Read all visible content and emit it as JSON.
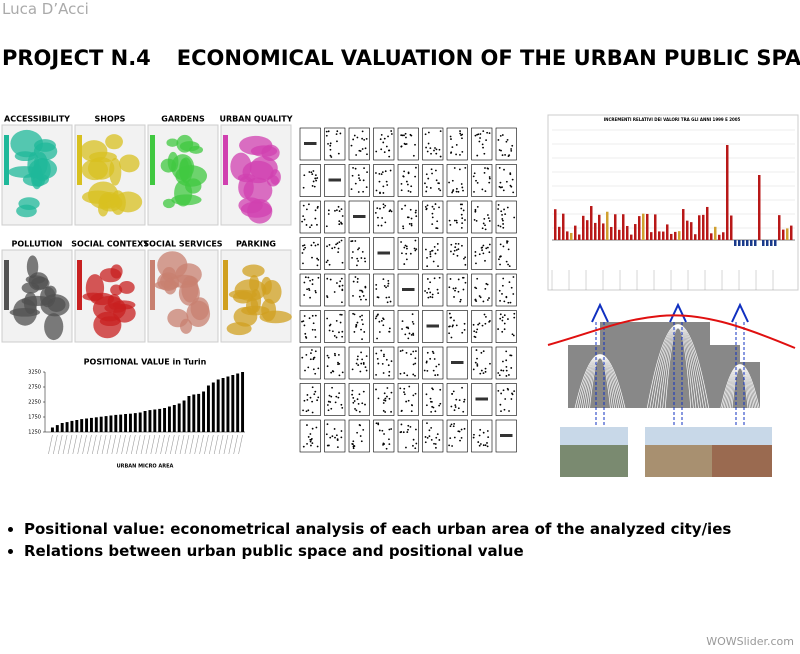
{
  "header": {
    "author": "Luca D’Acci",
    "project": "PROJECT N.4",
    "title": "ECONOMICAL VALUATION OF THE URBAN PUBLIC SPACE"
  },
  "maps": {
    "labels": [
      "ACCESSIBILITY",
      "SHOPS",
      "GARDENS",
      "URBAN QUALITY",
      "POLLUTION",
      "SOCIAL CONTEXT",
      "SOCIAL SERVICES",
      "PARKING"
    ],
    "colors": [
      "#1fb89a",
      "#d8c020",
      "#40c840",
      "#d040b0",
      "#505050",
      "#c82020",
      "#c88070",
      "#d0a020"
    ]
  },
  "increments_chart": {
    "title": "INCREMENTI RELATIVI DEI VALORI TRA GLI ANNI 1999 E 2005"
  },
  "chart_data": {
    "type": "bar",
    "title": "POSITIONAL VALUE in Turin",
    "x_label": "URBAN MICRO AREA",
    "color": "#000000",
    "values": [
      1400,
      1480,
      1550,
      1580,
      1620,
      1650,
      1680,
      1700,
      1720,
      1740,
      1760,
      1780,
      1800,
      1820,
      1830,
      1850,
      1860,
      1880,
      1900,
      1950,
      1980,
      2000,
      2020,
      2050,
      2100,
      2150,
      2200,
      2300,
      2450,
      2500,
      2520,
      2600,
      2800,
      2900,
      3000,
      3050,
      3100,
      3150,
      3200,
      3250
    ],
    "ylim": [
      1250,
      3250
    ],
    "yticks": [
      1250,
      1750,
      2250,
      2750,
      3250
    ]
  },
  "bullets": [
    "Positional value: econometrical analysis of each urban area of the analyzed city/ies",
    "Relations between urban public space and positional value"
  ],
  "footer": "WOWSlider.com"
}
